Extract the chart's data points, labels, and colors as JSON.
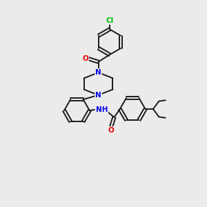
{
  "background_color": "#ebebeb",
  "bond_color": "#1a1a1a",
  "atom_colors": {
    "N": "#0000ee",
    "O": "#ee0000",
    "Cl": "#00bb00",
    "C": "#1a1a1a",
    "H": "#1a1a1a"
  },
  "figsize": [
    3.0,
    3.0
  ],
  "dpi": 100,
  "lw": 1.4,
  "r_hex": 0.62
}
